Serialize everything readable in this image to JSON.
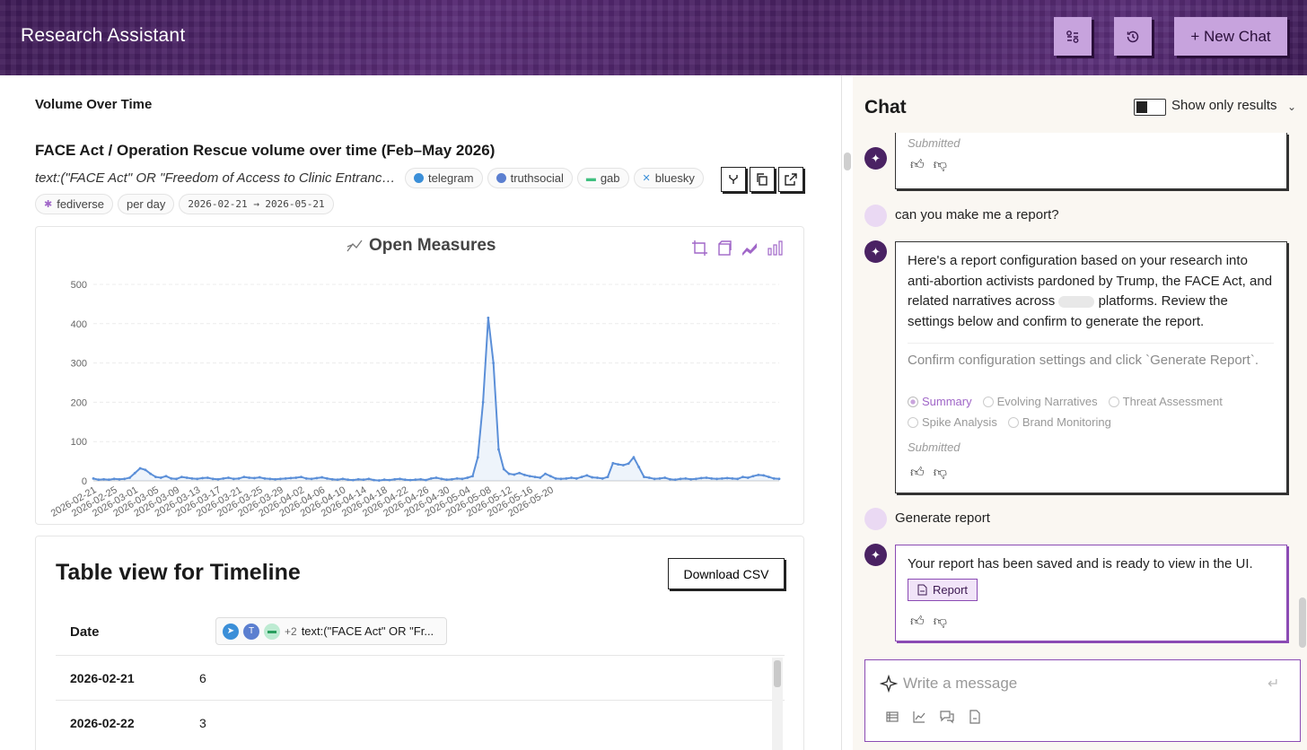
{
  "header": {
    "title": "Research Assistant",
    "new_chat_label": "+ New Chat",
    "icons": [
      "filters-icon",
      "history-icon"
    ]
  },
  "main": {
    "section_title": "Volume Over Time",
    "chart_title": "FACE Act / Operation Rescue volume over time (Feb–May 2026)",
    "query": "text:(\"FACE Act\" OR \"Freedom of Access to Clinic Entrance...",
    "platform_chips": [
      "telegram",
      "truthsocial",
      "gab",
      "bluesky",
      "fediverse"
    ],
    "interval_chip": "per day",
    "date_range_chip": "2026-02-21 → 2026-05-21",
    "brand": "Open Measures"
  },
  "chart_data": {
    "type": "line",
    "title": "",
    "xlabel": "",
    "ylabel": "",
    "ylim": [
      0,
      500
    ],
    "yticks": [
      0,
      100,
      200,
      300,
      400,
      500
    ],
    "xticks": [
      "2026-02-21",
      "2026-02-25",
      "2026-03-01",
      "2026-03-05",
      "2026-03-09",
      "2026-03-13",
      "2026-03-17",
      "2026-03-21",
      "2026-03-25",
      "2026-03-29",
      "2026-04-02",
      "2026-04-06",
      "2026-04-10",
      "2026-04-14",
      "2026-04-18",
      "2026-04-22",
      "2026-04-26",
      "2026-04-30",
      "2026-05-04",
      "2026-05-08",
      "2026-05-12",
      "2026-05-16",
      "2026-05-20"
    ],
    "grid": true,
    "x_start": "2026-02-21",
    "values": [
      6,
      3,
      4,
      3,
      5,
      4,
      5,
      8,
      20,
      32,
      28,
      18,
      10,
      8,
      12,
      6,
      5,
      10,
      8,
      6,
      5,
      7,
      8,
      5,
      4,
      6,
      8,
      5,
      6,
      10,
      8,
      7,
      9,
      6,
      5,
      4,
      5,
      6,
      7,
      8,
      10,
      6,
      5,
      7,
      9,
      6,
      4,
      3,
      5,
      3,
      2,
      4,
      3,
      5,
      2,
      1,
      3,
      2,
      4,
      5,
      3,
      2,
      3,
      4,
      2,
      6,
      8,
      5,
      3,
      4,
      6,
      5,
      8,
      12,
      60,
      200,
      415,
      300,
      80,
      30,
      18,
      16,
      20,
      15,
      12,
      10,
      8,
      18,
      12,
      6,
      5,
      6,
      8,
      6,
      10,
      14,
      9,
      8,
      6,
      10,
      45,
      42,
      40,
      44,
      60,
      35,
      10,
      8,
      5,
      6,
      8,
      4,
      3,
      5,
      6,
      4,
      5,
      7,
      8,
      6,
      5,
      6,
      7,
      6,
      5,
      10,
      8,
      12,
      15,
      14,
      10,
      6,
      5
    ]
  },
  "table": {
    "title": "Table view for Timeline",
    "download_label": "Download CSV",
    "date_header": "Date",
    "query_header": "text:(\"FACE Act\" OR \"Fr...",
    "query_plus": "+2",
    "rows": [
      {
        "date": "2026-02-21",
        "value": "6"
      },
      {
        "date": "2026-02-22",
        "value": "3"
      }
    ]
  },
  "chat": {
    "title": "Chat",
    "toggle_label": "Show only results",
    "submitted_label": "Submitted",
    "user_msg_1": "can you make me a report?",
    "bot_msg_1": "Here's a report configuration based on your research into anti-abortion activists pardoned by Trump, the FACE Act, and related narratives across",
    "bot_msg_1_end": "platforms. Review the settings below and confirm to generate the report.",
    "confirm_text": "Confirm configuration settings and click `Generate Report`.",
    "report_options": [
      "Summary",
      "Evolving Narratives",
      "Threat Assessment",
      "Spike Analysis",
      "Brand Monitoring"
    ],
    "selected_option": "Summary",
    "user_msg_2": "Generate report",
    "bot_msg_2": "Your report has been saved and is ready to view in the UI.",
    "report_button": "Report",
    "composer_placeholder": "Write a message"
  },
  "colors": {
    "header_bg": "#4a2263",
    "accent": "#c7a3dd",
    "line": "#5b8fd8"
  }
}
